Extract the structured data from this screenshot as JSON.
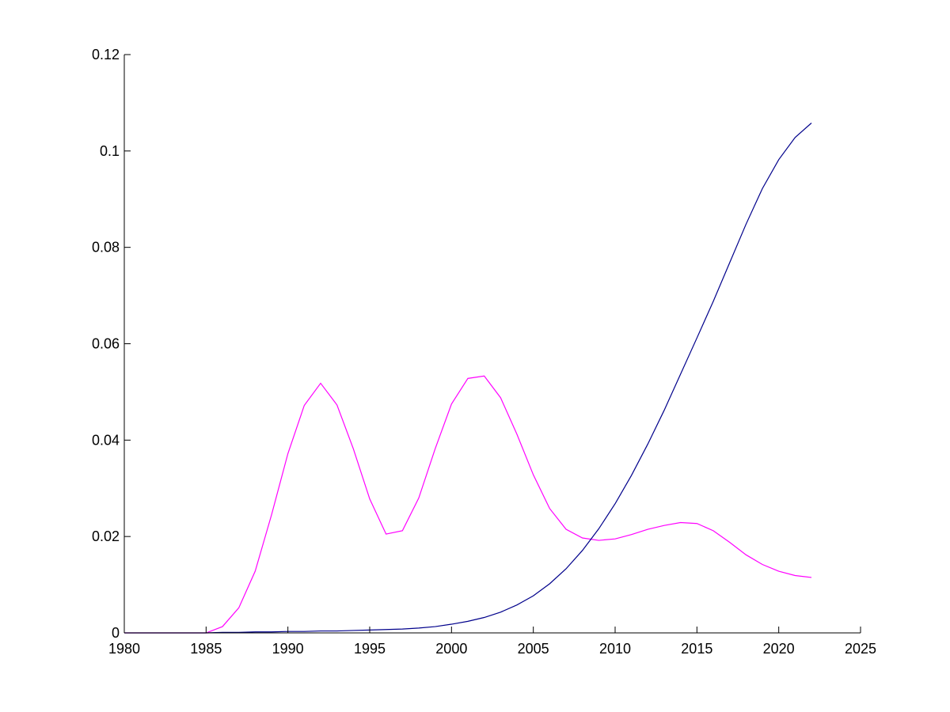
{
  "chart_data": {
    "type": "line",
    "title": "",
    "xlabel": "",
    "ylabel": "",
    "xlim": [
      1980,
      2025
    ],
    "ylim": [
      0,
      0.12
    ],
    "xticks": [
      1980,
      1985,
      1990,
      1995,
      2000,
      2005,
      2010,
      2015,
      2020,
      2025
    ],
    "yticks": [
      0,
      0.02,
      0.04,
      0.06,
      0.08,
      0.1,
      0.12
    ],
    "xtick_labels": [
      "1980",
      "1985",
      "1990",
      "1995",
      "2000",
      "2005",
      "2010",
      "2015",
      "2020",
      "2025"
    ],
    "ytick_labels": [
      "0",
      "0.02",
      "0.04",
      "0.06",
      "0.08",
      "0.1",
      "0.12"
    ],
    "grid": false,
    "x": [
      1980,
      1981,
      1982,
      1983,
      1984,
      1985,
      1986,
      1987,
      1988,
      1989,
      1990,
      1991,
      1992,
      1993,
      1994,
      1995,
      1996,
      1997,
      1998,
      1999,
      2000,
      2001,
      2002,
      2003,
      2004,
      2005,
      2006,
      2007,
      2008,
      2009,
      2010,
      2011,
      2012,
      2013,
      2014,
      2015,
      2016,
      2017,
      2018,
      2019,
      2020,
      2021,
      2022
    ],
    "series": [
      {
        "color": "#ff00ff",
        "values": [
          0,
          0,
          0,
          0,
          0,
          0,
          0.0013,
          0.0052,
          0.0128,
          0.0245,
          0.0372,
          0.0472,
          0.0518,
          0.0473,
          0.0382,
          0.0278,
          0.0205,
          0.0212,
          0.028,
          0.0382,
          0.0475,
          0.0528,
          0.0533,
          0.0488,
          0.0412,
          0.0328,
          0.0258,
          0.0215,
          0.0197,
          0.0192,
          0.0195,
          0.0204,
          0.0215,
          0.0223,
          0.0229,
          0.0227,
          0.0212,
          0.0188,
          0.0162,
          0.0142,
          0.0128,
          0.0119,
          0.0115
        ]
      },
      {
        "color": "#00008b",
        "values": [
          0,
          0,
          0,
          0,
          0,
          0,
          0.0001,
          0.0001,
          0.0002,
          0.0002,
          0.0003,
          0.0003,
          0.0004,
          0.0004,
          0.0005,
          0.0006,
          0.0007,
          0.0008,
          0.001,
          0.0013,
          0.0018,
          0.0024,
          0.0032,
          0.0043,
          0.0058,
          0.0077,
          0.0102,
          0.0133,
          0.0171,
          0.0216,
          0.0268,
          0.0327,
          0.0392,
          0.0462,
          0.0537,
          0.0612,
          0.0688,
          0.0768,
          0.0848,
          0.0922,
          0.0982,
          0.1028,
          0.1058
        ]
      }
    ]
  }
}
